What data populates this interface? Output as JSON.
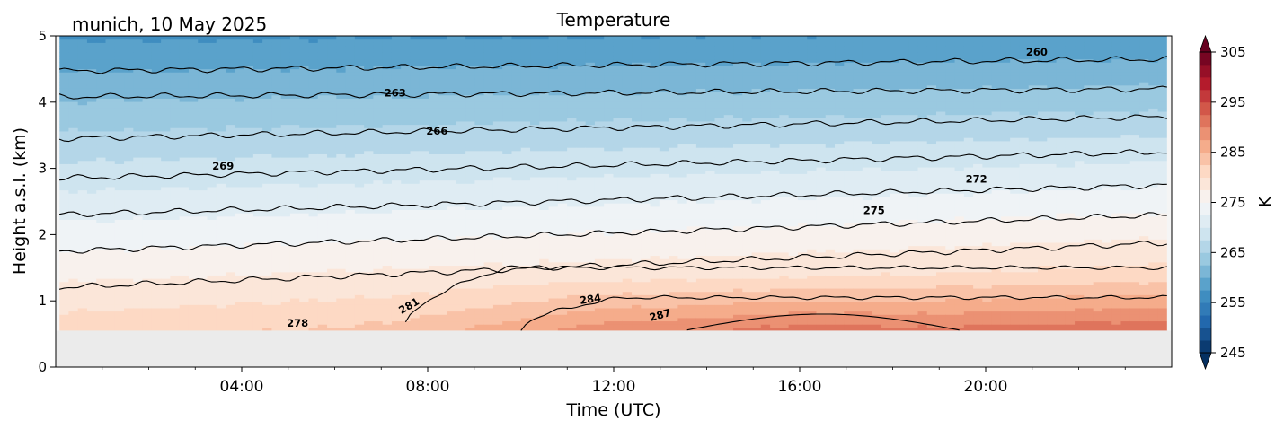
{
  "chart_data": {
    "type": "heatmap",
    "title": "Temperature",
    "subtitle": "munich, 10 May 2025",
    "xlabel": "Time (UTC)",
    "ylabel": "Height a.s.l. (km)",
    "x_unit": "hours UTC",
    "xlim": [
      0,
      24
    ],
    "ylim": [
      0,
      5
    ],
    "x_ticks": [
      "04:00",
      "08:00",
      "12:00",
      "16:00",
      "20:00"
    ],
    "x_tick_values": [
      4,
      8,
      12,
      16,
      20
    ],
    "y_ticks": [
      "0",
      "1",
      "2",
      "3",
      "4",
      "5"
    ],
    "y_tick_values": [
      0,
      1,
      2,
      3,
      4,
      5
    ],
    "data_x_range": [
      0.08,
      23.9
    ],
    "data_min_height_km": 0.55,
    "colorbar": {
      "label": "K",
      "colormap": "RdBu_r",
      "range": [
        245,
        305
      ],
      "ticks": [
        "245",
        "255",
        "265",
        "275",
        "285",
        "295",
        "305"
      ],
      "tick_values": [
        245,
        255,
        265,
        275,
        285,
        295,
        305
      ],
      "extend": "both"
    },
    "contours": {
      "levels": [
        260,
        263,
        266,
        269,
        272,
        275,
        278,
        281,
        284,
        287
      ],
      "height_at_time": [
        {
          "level": 260,
          "h_start": 4.47,
          "h_end": 4.65
        },
        {
          "level": 263,
          "h_start": 4.08,
          "h_end": 4.2
        },
        {
          "level": 266,
          "h_start": 3.45,
          "h_end": 3.78
        },
        {
          "level": 269,
          "h_start": 2.85,
          "h_end": 3.25
        },
        {
          "level": 272,
          "h_start": 2.3,
          "h_end": 2.75
        },
        {
          "level": 275,
          "h_start": 1.75,
          "h_end": 2.3
        },
        {
          "level": 278,
          "h_start": 1.2,
          "h_end": 1.88
        },
        {
          "level": 281,
          "h_start": null,
          "h_end": 1.5
        },
        {
          "level": 284,
          "h_start": null,
          "h_end": 1.05
        },
        {
          "level": 287,
          "h_start": null,
          "h_end": 0.6
        }
      ],
      "labels": [
        {
          "text": "260",
          "x": 21.1,
          "y": 4.75,
          "angle": 0
        },
        {
          "text": "263",
          "x": 7.3,
          "y": 4.13,
          "angle": 0
        },
        {
          "text": "266",
          "x": 8.2,
          "y": 3.56,
          "angle": 0
        },
        {
          "text": "269",
          "x": 3.6,
          "y": 3.03,
          "angle": 0
        },
        {
          "text": "272",
          "x": 19.8,
          "y": 2.83,
          "angle": 0
        },
        {
          "text": "275",
          "x": 17.6,
          "y": 2.36,
          "angle": 0
        },
        {
          "text": "278",
          "x": 5.2,
          "y": 0.66,
          "angle": 0
        },
        {
          "text": "281",
          "x": 7.6,
          "y": 0.92,
          "angle": -30
        },
        {
          "text": "284",
          "x": 11.5,
          "y": 1.02,
          "angle": -8
        },
        {
          "text": "287",
          "x": 13.0,
          "y": 0.78,
          "angle": -15
        }
      ]
    },
    "missing_data_color": "#ebebeb",
    "grid": false,
    "legend": "none"
  }
}
